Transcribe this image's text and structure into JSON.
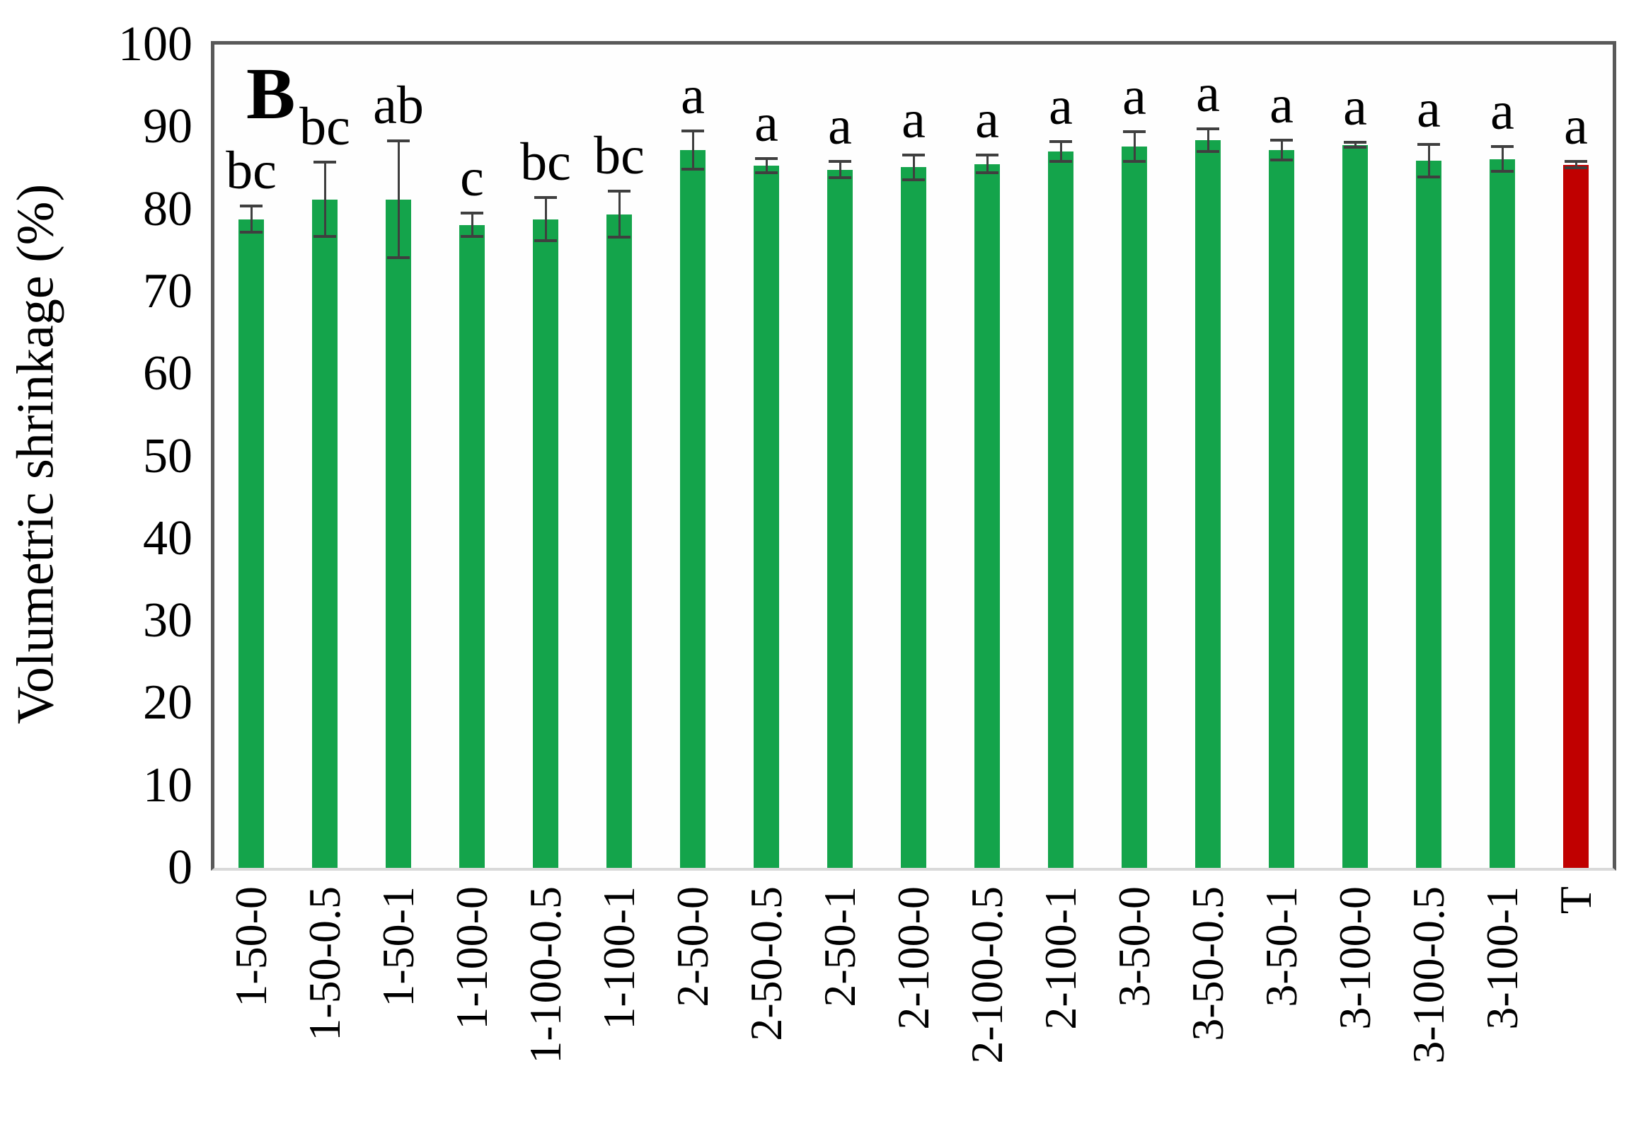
{
  "figure": {
    "panel_label": "B"
  },
  "chart_data": {
    "type": "bar",
    "title": "",
    "xlabel": "",
    "ylabel": "Volumetric shrinkage (%)",
    "ylim": [
      0,
      100
    ],
    "yticks": [
      0,
      10,
      20,
      30,
      40,
      50,
      60,
      70,
      80,
      90,
      100
    ],
    "grid": false,
    "legend_position": "none",
    "categories": [
      "1-50-0",
      "1-50-0.5",
      "1-50-1",
      "1-100-0",
      "1-100-0.5",
      "1-100-1",
      "2-50-0",
      "2-50-0.5",
      "2-50-1",
      "2-100-0",
      "2-100-0.5",
      "2-100-1",
      "3-50-0",
      "3-50-0.5",
      "3-50-1",
      "3-100-0",
      "3-100-0.5",
      "3-100-1",
      "T"
    ],
    "series": [
      {
        "name": "Volumetric shrinkage (%)",
        "values": [
          78.8,
          81.2,
          81.2,
          78.1,
          78.8,
          79.4,
          87.2,
          85.3,
          84.8,
          85.1,
          85.5,
          87.0,
          87.6,
          88.4,
          87.2,
          87.8,
          85.9,
          86.1,
          85.4
        ],
        "errors": [
          1.6,
          4.5,
          7.1,
          1.4,
          2.6,
          2.8,
          2.3,
          0.9,
          1.0,
          1.5,
          1.1,
          1.2,
          1.8,
          1.4,
          1.2,
          0.3,
          2.0,
          1.5,
          0.4
        ],
        "sig_letters": [
          "bc",
          "bc",
          "ab",
          "c",
          "bc",
          "bc",
          "a",
          "a",
          "a",
          "a",
          "a",
          "a",
          "a",
          "a",
          "a",
          "a",
          "a",
          "a",
          "a"
        ],
        "bar_colors": [
          "#14a44b",
          "#14a44b",
          "#14a44b",
          "#14a44b",
          "#14a44b",
          "#14a44b",
          "#14a44b",
          "#14a44b",
          "#14a44b",
          "#14a44b",
          "#14a44b",
          "#14a44b",
          "#14a44b",
          "#14a44b",
          "#14a44b",
          "#14a44b",
          "#14a44b",
          "#14a44b",
          "#c00000"
        ]
      }
    ],
    "colors": {
      "treated_bar": "#14a44b",
      "control_bar": "#c00000",
      "error_bar": "#3f3f3f",
      "frame": "#595959",
      "baseline": "#d9d9d9",
      "text": "#000000"
    }
  }
}
